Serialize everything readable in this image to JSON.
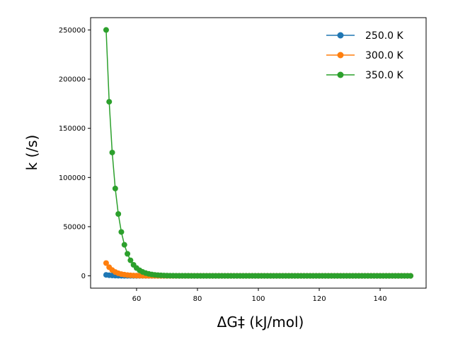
{
  "chart_data": {
    "type": "line",
    "title": "",
    "xlabel": "ΔG‡ (kJ/mol)",
    "ylabel": "k (/s)",
    "xlim": [
      44.9,
      155.1
    ],
    "ylim": [
      -12500,
      262500
    ],
    "xticks": [
      60,
      80,
      100,
      120,
      140
    ],
    "yticks": [
      0,
      50000,
      100000,
      150000,
      200000,
      250000
    ],
    "grid": false,
    "legend_position": "top-right",
    "x": [
      50,
      51,
      52,
      53,
      54,
      55,
      56,
      57,
      58,
      59,
      60,
      61,
      62,
      63,
      64,
      65,
      66,
      67,
      68,
      69,
      70,
      71,
      72,
      73,
      74,
      75,
      76,
      77,
      78,
      79,
      80,
      81,
      82,
      83,
      84,
      85,
      86,
      87,
      88,
      89,
      90,
      91,
      92,
      93,
      94,
      95,
      96,
      97,
      98,
      99,
      100,
      101,
      102,
      103,
      104,
      105,
      106,
      107,
      108,
      109,
      110,
      111,
      112,
      113,
      114,
      115,
      116,
      117,
      118,
      119,
      120,
      121,
      122,
      123,
      124,
      125,
      126,
      127,
      128,
      129,
      130,
      131,
      132,
      133,
      134,
      135,
      136,
      137,
      138,
      139,
      140,
      141,
      142,
      143,
      144,
      145,
      146,
      147,
      148,
      149,
      150
    ],
    "series": [
      {
        "name": "250.0 K",
        "color": "#1f77b4",
        "values": [
          1000,
          618,
          382,
          236,
          146,
          90,
          56,
          34,
          21,
          13,
          8,
          5,
          3,
          2,
          1,
          1,
          0,
          0,
          0,
          0,
          0,
          0,
          0,
          0,
          0,
          0,
          0,
          0,
          0,
          0,
          0,
          0,
          0,
          0,
          0,
          0,
          0,
          0,
          0,
          0,
          0,
          0,
          0,
          0,
          0,
          0,
          0,
          0,
          0,
          0,
          0,
          0,
          0,
          0,
          0,
          0,
          0,
          0,
          0,
          0,
          0,
          0,
          0,
          0,
          0,
          0,
          0,
          0,
          0,
          0,
          0,
          0,
          0,
          0,
          0,
          0,
          0,
          0,
          0,
          0,
          0,
          0,
          0,
          0,
          0,
          0,
          0,
          0,
          0,
          0,
          0,
          0,
          0,
          0,
          0,
          0,
          0,
          0,
          0,
          0,
          0
        ]
      },
      {
        "name": "300.0 K",
        "color": "#ff7f0e",
        "values": [
          13000,
          8730,
          5860,
          3930,
          2640,
          1770,
          1190,
          800,
          537,
          361,
          242,
          163,
          109,
          73,
          49,
          33,
          22,
          15,
          10,
          7,
          5,
          3,
          2,
          1,
          1,
          1,
          0,
          0,
          0,
          0,
          0,
          0,
          0,
          0,
          0,
          0,
          0,
          0,
          0,
          0,
          0,
          0,
          0,
          0,
          0,
          0,
          0,
          0,
          0,
          0,
          0,
          0,
          0,
          0,
          0,
          0,
          0,
          0,
          0,
          0,
          0,
          0,
          0,
          0,
          0,
          0,
          0,
          0,
          0,
          0,
          0,
          0,
          0,
          0,
          0,
          0,
          0,
          0,
          0,
          0,
          0,
          0,
          0,
          0,
          0,
          0,
          0,
          0,
          0,
          0,
          0,
          0,
          0,
          0,
          0,
          0,
          0,
          0,
          0,
          0,
          0
        ]
      },
      {
        "name": "350.0 K",
        "color": "#2ca02c",
        "values": [
          250000,
          177000,
          125400,
          88800,
          62900,
          44600,
          31600,
          22400,
          15800,
          11200,
          7950,
          5630,
          3990,
          2830,
          2000,
          1420,
          1000,
          711,
          504,
          357,
          253,
          179,
          127,
          90,
          64,
          45,
          32,
          23,
          16,
          11,
          8,
          6,
          4,
          3,
          2,
          1,
          1,
          1,
          0,
          0,
          0,
          0,
          0,
          0,
          0,
          0,
          0,
          0,
          0,
          0,
          0,
          0,
          0,
          0,
          0,
          0,
          0,
          0,
          0,
          0,
          0,
          0,
          0,
          0,
          0,
          0,
          0,
          0,
          0,
          0,
          0,
          0,
          0,
          0,
          0,
          0,
          0,
          0,
          0,
          0,
          0,
          0,
          0,
          0,
          0,
          0,
          0,
          0,
          0,
          0,
          0,
          0,
          0,
          0,
          0,
          0,
          0,
          0,
          0,
          0,
          0
        ]
      }
    ]
  }
}
